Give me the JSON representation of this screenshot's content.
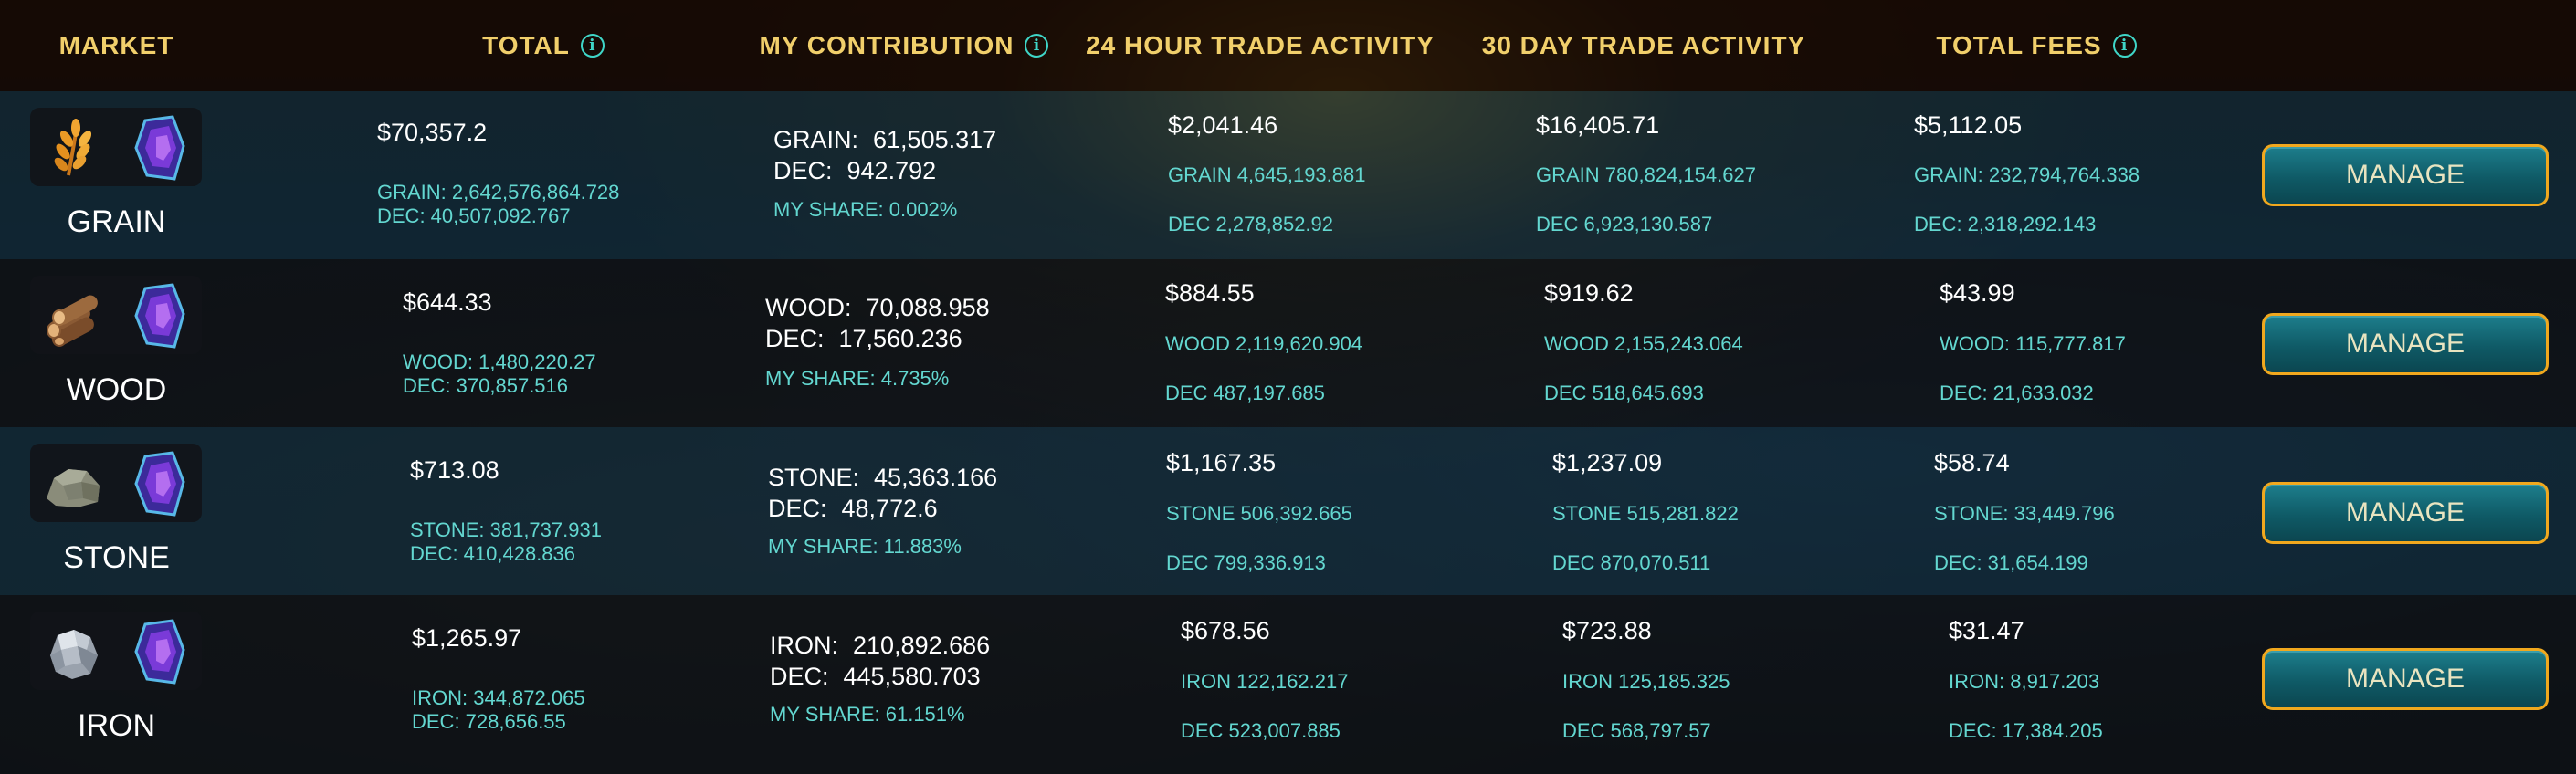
{
  "header": {
    "market": "MARKET",
    "total": "TOTAL",
    "my_contribution": "MY CONTRIBUTION",
    "trade_24h": "24 HOUR TRADE ACTIVITY",
    "trade_30d": "30 DAY TRADE ACTIVITY",
    "total_fees": "TOTAL FEES",
    "info_glyph": "i"
  },
  "icons": {
    "grain": "grain-icon",
    "wood": "wood-icon",
    "stone": "stone-icon",
    "iron": "iron-icon",
    "dec": "dec-crystal-icon"
  },
  "colors": {
    "header_text": "#f1cf6b",
    "accent": "#63d7d0",
    "button_border": "#f0a81e",
    "button_fill": "#0f5a66"
  },
  "rows": [
    {
      "name": "GRAIN",
      "total": {
        "usd": "$70,357.2",
        "res": "GRAIN: 2,642,576,864.728",
        "dec": "DEC: 40,507,092.767"
      },
      "contribution": {
        "res_label": "GRAIN:",
        "res_value": "61,505.317",
        "dec_label": "DEC:",
        "dec_value": "942.792",
        "share": "MY SHARE: 0.002%"
      },
      "trade_24h": {
        "usd": "$2,041.46",
        "res": "GRAIN 4,645,193.881",
        "dec": "DEC 2,278,852.92"
      },
      "trade_30d": {
        "usd": "$16,405.71",
        "res": "GRAIN 780,824,154.627",
        "dec": "DEC 6,923,130.587"
      },
      "fees": {
        "usd": "$5,112.05",
        "res": "GRAIN: 232,794,764.338",
        "dec": "DEC: 2,318,292.143"
      },
      "button": "MANAGE"
    },
    {
      "name": "WOOD",
      "total": {
        "usd": "$644.33",
        "res": "WOOD: 1,480,220.27",
        "dec": "DEC: 370,857.516"
      },
      "contribution": {
        "res_label": "WOOD:",
        "res_value": "70,088.958",
        "dec_label": "DEC:",
        "dec_value": "17,560.236",
        "share": "MY SHARE: 4.735%"
      },
      "trade_24h": {
        "usd": "$884.55",
        "res": "WOOD 2,119,620.904",
        "dec": "DEC 487,197.685"
      },
      "trade_30d": {
        "usd": "$919.62",
        "res": "WOOD 2,155,243.064",
        "dec": "DEC 518,645.693"
      },
      "fees": {
        "usd": "$43.99",
        "res": "WOOD: 115,777.817",
        "dec": "DEC: 21,633.032"
      },
      "button": "MANAGE"
    },
    {
      "name": "STONE",
      "total": {
        "usd": "$713.08",
        "res": "STONE: 381,737.931",
        "dec": "DEC: 410,428.836"
      },
      "contribution": {
        "res_label": "STONE:",
        "res_value": "45,363.166",
        "dec_label": "DEC:",
        "dec_value": "48,772.6",
        "share": "MY SHARE: 11.883%"
      },
      "trade_24h": {
        "usd": "$1,167.35",
        "res": "STONE 506,392.665",
        "dec": "DEC 799,336.913"
      },
      "trade_30d": {
        "usd": "$1,237.09",
        "res": "STONE 515,281.822",
        "dec": "DEC 870,070.511"
      },
      "fees": {
        "usd": "$58.74",
        "res": "STONE: 33,449.796",
        "dec": "DEC: 31,654.199"
      },
      "button": "MANAGE"
    },
    {
      "name": "IRON",
      "total": {
        "usd": "$1,265.97",
        "res": "IRON: 344,872.065",
        "dec": "DEC: 728,656.55"
      },
      "contribution": {
        "res_label": "IRON:",
        "res_value": "210,892.686",
        "dec_label": "DEC:",
        "dec_value": "445,580.703",
        "share": "MY SHARE: 61.151%"
      },
      "trade_24h": {
        "usd": "$678.56",
        "res": "IRON 122,162.217",
        "dec": "DEC 523,007.885"
      },
      "trade_30d": {
        "usd": "$723.88",
        "res": "IRON 125,185.325",
        "dec": "DEC 568,797.57"
      },
      "fees": {
        "usd": "$31.47",
        "res": "IRON: 8,917.203",
        "dec": "DEC: 17,384.205"
      },
      "button": "MANAGE"
    }
  ]
}
